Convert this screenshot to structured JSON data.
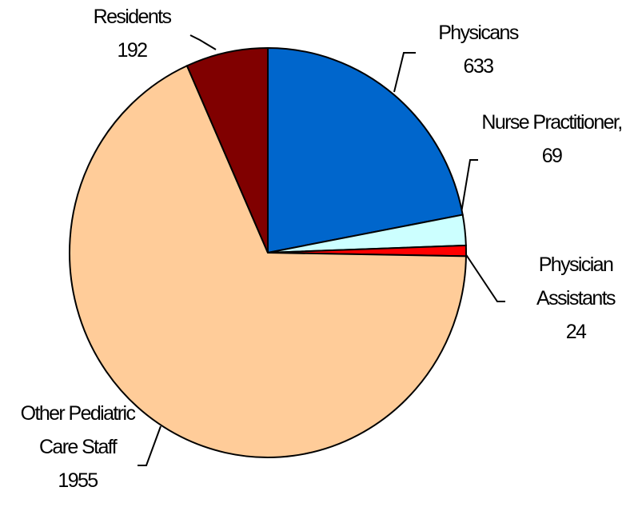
{
  "chart_data": {
    "type": "pie",
    "categories": [
      "Physicans",
      "Nurse Practitioner,",
      "Physician Assistants",
      "Other Pediatric Care Staff",
      "Residents"
    ],
    "values": [
      633,
      69,
      24,
      1955,
      192
    ],
    "colors": [
      "#0066cc",
      "#ccffff",
      "#ff0000",
      "#ffcc99",
      "#800000"
    ]
  }
}
